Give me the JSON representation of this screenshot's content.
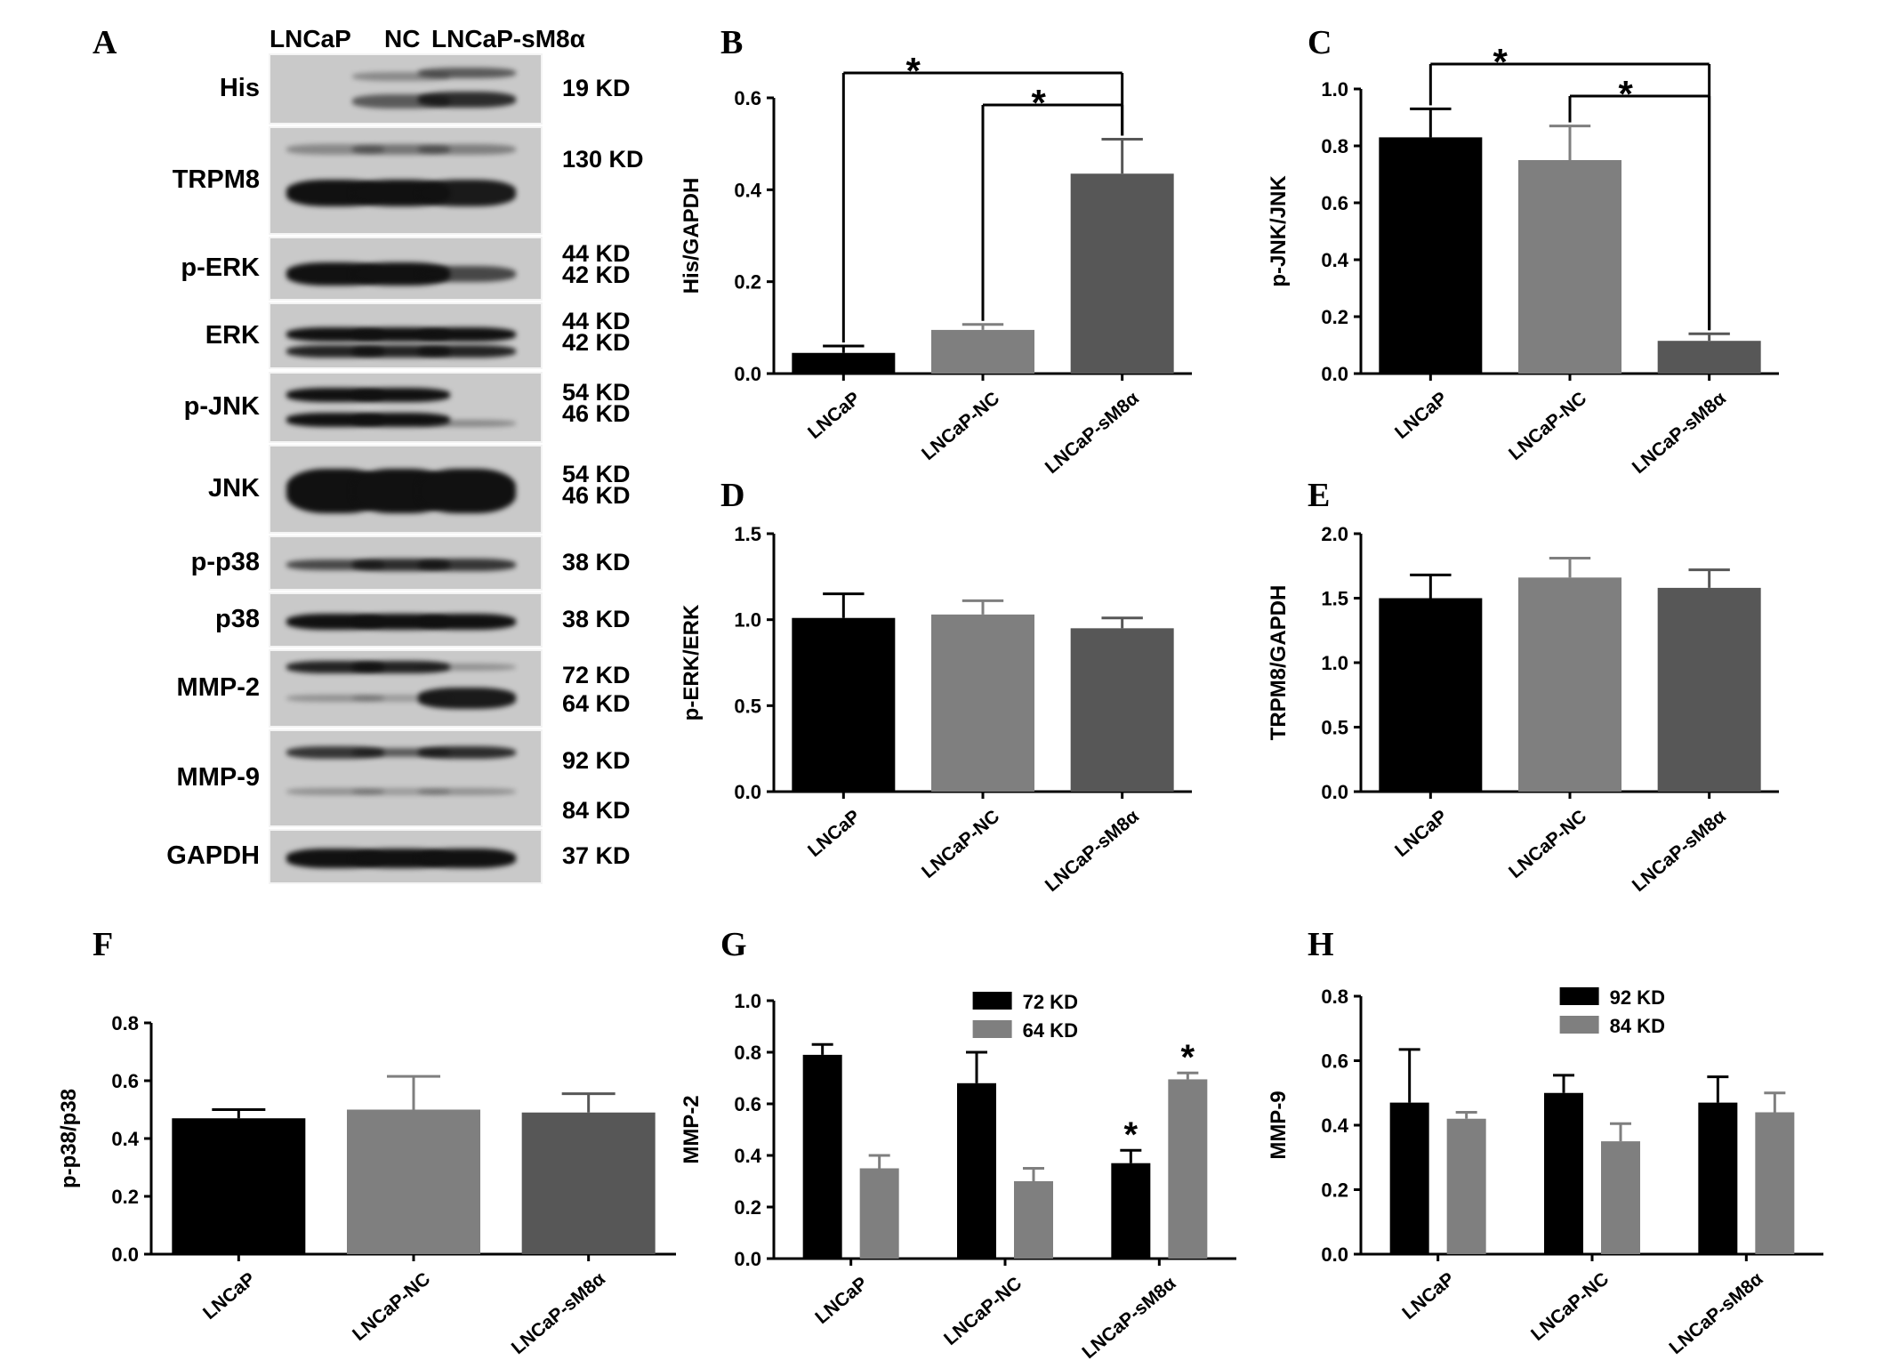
{
  "panel_letters": [
    "A",
    "B",
    "C",
    "D",
    "E",
    "F",
    "G",
    "H"
  ],
  "blot": {
    "header": [
      "LNCaP",
      "NC",
      "LNCaP-sM8α"
    ],
    "rows": [
      {
        "label": "His",
        "kd": [
          "19 KD"
        ]
      },
      {
        "label": "TRPM8",
        "kd": [
          "130 KD"
        ]
      },
      {
        "label": "p-ERK",
        "kd": [
          "44 KD",
          "42 KD"
        ]
      },
      {
        "label": "ERK",
        "kd": [
          "44 KD",
          "42 KD"
        ]
      },
      {
        "label": "p-JNK",
        "kd": [
          "54 KD",
          "46 KD"
        ]
      },
      {
        "label": "JNK",
        "kd": [
          "54 KD",
          "46 KD"
        ]
      },
      {
        "label": "p-p38",
        "kd": [
          "38 KD"
        ]
      },
      {
        "label": "p38",
        "kd": [
          "38 KD"
        ]
      },
      {
        "label": "MMP-2",
        "kd": [
          "72 KD",
          "64 KD"
        ]
      },
      {
        "label": "MMP-9",
        "kd": [
          "92 KD",
          "84 KD"
        ]
      },
      {
        "label": "GAPDH",
        "kd": [
          "37 KD"
        ]
      }
    ]
  },
  "colors": {
    "black": "#000000",
    "gray": "#7f7f7f",
    "dark_gray": "#575757"
  },
  "chart_data": [
    {
      "panel": "B",
      "type": "bar",
      "categories": [
        "LNCaP",
        "LNCaP-NC",
        "LNCaP-sM8α"
      ],
      "values": [
        0.045,
        0.095,
        0.435
      ],
      "errors": [
        0.015,
        0.012,
        0.075
      ],
      "bar_colors": [
        "#000000",
        "#7f7f7f",
        "#575757"
      ],
      "ylabel": "His/GAPDH",
      "ylim": [
        0,
        0.6
      ],
      "yticks": [
        "0.0",
        "0.2",
        "0.4",
        "0.6"
      ],
      "significance": [
        {
          "from": 0,
          "to": 2,
          "label": "*"
        },
        {
          "from": 1,
          "to": 2,
          "label": "*"
        }
      ]
    },
    {
      "panel": "C",
      "type": "bar",
      "categories": [
        "LNCaP",
        "LNCaP-NC",
        "LNCaP-sM8α"
      ],
      "values": [
        0.83,
        0.75,
        0.115
      ],
      "errors": [
        0.1,
        0.12,
        0.025
      ],
      "bar_colors": [
        "#000000",
        "#7f7f7f",
        "#575757"
      ],
      "ylabel": "p-JNK/JNK",
      "ylim": [
        0,
        1.0
      ],
      "yticks": [
        "0.0",
        "0.2",
        "0.4",
        "0.6",
        "0.8",
        "1.0"
      ],
      "significance": [
        {
          "from": 0,
          "to": 2,
          "label": "*"
        },
        {
          "from": 1,
          "to": 2,
          "label": "*"
        }
      ]
    },
    {
      "panel": "D",
      "type": "bar",
      "categories": [
        "LNCaP",
        "LNCaP-NC",
        "LNCaP-sM8α"
      ],
      "values": [
        1.01,
        1.03,
        0.95
      ],
      "errors": [
        0.14,
        0.08,
        0.06
      ],
      "bar_colors": [
        "#000000",
        "#7f7f7f",
        "#575757"
      ],
      "ylabel": "p-ERK/ERK",
      "ylim": [
        0,
        1.5
      ],
      "yticks": [
        "0.0",
        "0.5",
        "1.0",
        "1.5"
      ]
    },
    {
      "panel": "E",
      "type": "bar",
      "categories": [
        "LNCaP",
        "LNCaP-NC",
        "LNCaP-sM8α"
      ],
      "values": [
        1.5,
        1.66,
        1.58
      ],
      "errors": [
        0.18,
        0.15,
        0.14
      ],
      "bar_colors": [
        "#000000",
        "#7f7f7f",
        "#575757"
      ],
      "ylabel": "TRPM8/GAPDH",
      "ylim": [
        0,
        2.0
      ],
      "yticks": [
        "0.0",
        "0.5",
        "1.0",
        "1.5",
        "2.0"
      ]
    },
    {
      "panel": "F",
      "type": "bar",
      "categories": [
        "LNCaP",
        "LNCaP-NC",
        "LNCaP-sM8α"
      ],
      "values": [
        0.47,
        0.5,
        0.49
      ],
      "errors": [
        0.03,
        0.115,
        0.065
      ],
      "bar_colors": [
        "#000000",
        "#7f7f7f",
        "#575757"
      ],
      "ylabel": "p-p38/p38",
      "ylim": [
        0,
        0.8
      ],
      "yticks": [
        "0.0",
        "0.2",
        "0.4",
        "0.6",
        "0.8"
      ]
    },
    {
      "panel": "G",
      "type": "bar",
      "categories": [
        "LNCaP",
        "LNCaP-NC",
        "LNCaP-sM8α"
      ],
      "series": [
        {
          "name": "72 KD",
          "values": [
            0.79,
            0.68,
            0.37
          ],
          "errors": [
            0.04,
            0.12,
            0.05
          ],
          "color": "#000000",
          "stars": [
            false,
            false,
            true
          ]
        },
        {
          "name": "64 KD",
          "values": [
            0.35,
            0.3,
            0.695
          ],
          "errors": [
            0.05,
            0.05,
            0.025
          ],
          "color": "#7f7f7f",
          "stars": [
            false,
            false,
            true
          ]
        }
      ],
      "ylabel": "MMP-2",
      "ylim": [
        0,
        1.0
      ],
      "yticks": [
        "0.0",
        "0.2",
        "0.4",
        "0.6",
        "0.8",
        "1.0"
      ],
      "legend": "top-center"
    },
    {
      "panel": "H",
      "type": "bar",
      "categories": [
        "LNCaP",
        "LNCaP-NC",
        "LNCaP-sM8α"
      ],
      "series": [
        {
          "name": "92 KD",
          "values": [
            0.47,
            0.5,
            0.47
          ],
          "errors": [
            0.165,
            0.055,
            0.08
          ],
          "color": "#000000"
        },
        {
          "name": "84 KD",
          "values": [
            0.42,
            0.35,
            0.44
          ],
          "errors": [
            0.02,
            0.055,
            0.06
          ],
          "color": "#7f7f7f"
        }
      ],
      "ylabel": "MMP-9",
      "ylim": [
        0,
        0.8
      ],
      "yticks": [
        "0.0",
        "0.2",
        "0.4",
        "0.6",
        "0.8"
      ],
      "legend": "top-center"
    }
  ]
}
